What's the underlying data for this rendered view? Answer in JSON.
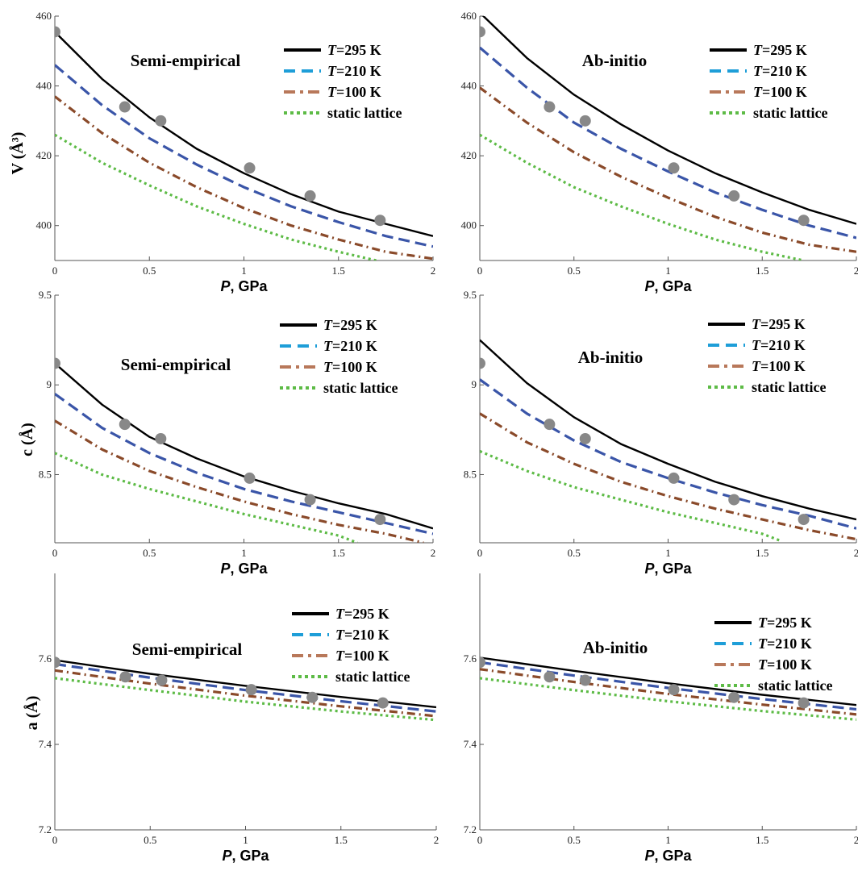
{
  "figure": {
    "x_axis_label_var": "P",
    "x_axis_label_unit": ", GPa"
  },
  "legend": [
    {
      "var": "T",
      "text": "=295 K",
      "color": "#000000",
      "style": "solid"
    },
    {
      "var": "T",
      "text": "=210 K",
      "color": "#3a55a8",
      "style": "dash"
    },
    {
      "var": "T",
      "text": "=100 K",
      "color": "#8a4a2a",
      "style": "dashdot"
    },
    {
      "var": "",
      "text": "static lattice",
      "color": "#5dbb46",
      "style": "dot"
    }
  ],
  "legend_swatch_colors": [
    "#000000",
    "#1e9ed8",
    "#b8785a",
    "#5dbb46"
  ],
  "marker_color": "#888888",
  "chart_data": [
    {
      "type": "line",
      "title": "Semi-empirical",
      "ylabel": "V (Å³)",
      "xlabel": "P, GPa",
      "xlim": [
        0,
        2
      ],
      "ylim": [
        390,
        460
      ],
      "xticks": [
        "0",
        "0.5",
        "1",
        "1.5",
        "2"
      ],
      "yticks": [
        "400",
        "420",
        "440",
        "460"
      ],
      "ytick_values": [
        400,
        420,
        440,
        460
      ],
      "grid": false,
      "legend_position": "top-right",
      "series": [
        {
          "name": "T=295 K",
          "x": [
            0,
            0.25,
            0.5,
            0.75,
            1.0,
            1.25,
            1.5,
            1.75,
            2.0
          ],
          "y": [
            455.5,
            442,
            431,
            422,
            415,
            409,
            404,
            400.5,
            397
          ]
        },
        {
          "name": "T=210 K",
          "x": [
            0,
            0.25,
            0.5,
            0.75,
            1.0,
            1.25,
            1.5,
            1.75,
            2.0
          ],
          "y": [
            446,
            434.5,
            425,
            417.5,
            411,
            405.5,
            401,
            397,
            394
          ]
        },
        {
          "name": "T=100 K",
          "x": [
            0,
            0.25,
            0.5,
            0.75,
            1.0,
            1.25,
            1.5,
            1.75,
            2.0
          ],
          "y": [
            437,
            426.5,
            418,
            411,
            405,
            400,
            396,
            392.5,
            390.5
          ]
        },
        {
          "name": "static lattice",
          "x": [
            0,
            0.25,
            0.5,
            0.75,
            1.0,
            1.25,
            1.5,
            1.7
          ],
          "y": [
            426,
            418,
            411.5,
            405.5,
            400.5,
            396,
            392.5,
            390
          ]
        }
      ],
      "points": {
        "x": [
          0,
          0.37,
          0.56,
          1.03,
          1.35,
          1.72
        ],
        "y": [
          455.5,
          434,
          430,
          416.5,
          408.5,
          401.5
        ]
      }
    },
    {
      "type": "line",
      "title": "Ab-initio",
      "ylabel": "",
      "xlabel": "P, GPa",
      "xlim": [
        0,
        2
      ],
      "ylim": [
        390,
        460
      ],
      "xticks": [
        "0",
        "0.5",
        "1",
        "1.5",
        "2"
      ],
      "yticks": [
        "400",
        "420",
        "440",
        "460"
      ],
      "ytick_values": [
        400,
        420,
        440,
        460
      ],
      "grid": false,
      "legend_position": "top-right",
      "series": [
        {
          "name": "T=295 K",
          "x": [
            0,
            0.25,
            0.5,
            0.75,
            1.0,
            1.25,
            1.5,
            1.75,
            2.0
          ],
          "y": [
            461,
            448,
            437.5,
            429,
            421.5,
            415,
            409.5,
            404.5,
            400.5
          ]
        },
        {
          "name": "T=210 K",
          "x": [
            0,
            0.25,
            0.5,
            0.75,
            1.0,
            1.25,
            1.5,
            1.75,
            2.0
          ],
          "y": [
            451,
            439.5,
            429.5,
            422,
            415.5,
            409.5,
            404.5,
            400,
            396.5
          ]
        },
        {
          "name": "T=100 K",
          "x": [
            0,
            0.25,
            0.5,
            0.75,
            1.0,
            1.25,
            1.5,
            1.75,
            2.0
          ],
          "y": [
            439.5,
            429.5,
            421,
            414,
            408,
            402.5,
            398,
            394.5,
            392.5
          ]
        },
        {
          "name": "static lattice",
          "x": [
            0,
            0.25,
            0.5,
            0.75,
            1.0,
            1.25,
            1.5,
            1.72
          ],
          "y": [
            426,
            418,
            411,
            405.5,
            400.5,
            396,
            392.5,
            390
          ]
        }
      ],
      "points": {
        "x": [
          0,
          0.37,
          0.56,
          1.03,
          1.35,
          1.72
        ],
        "y": [
          455.5,
          434,
          430,
          416.5,
          408.5,
          401.5
        ]
      }
    },
    {
      "type": "line",
      "title": "Semi-empirical",
      "ylabel": "c (Å)",
      "xlabel": "P, GPa",
      "xlim": [
        0,
        2
      ],
      "ylim": [
        8.12,
        9.5
      ],
      "xticks": [
        "0",
        "0.5",
        "1",
        "1.5",
        "2"
      ],
      "yticks": [
        "8.5",
        "9",
        "9.5"
      ],
      "ytick_values": [
        8.5,
        9.0,
        9.5
      ],
      "grid": false,
      "legend_position": "top-right",
      "series": [
        {
          "name": "T=295 K",
          "x": [
            0,
            0.25,
            0.5,
            0.75,
            1.0,
            1.25,
            1.5,
            1.75,
            2.0
          ],
          "y": [
            9.12,
            8.89,
            8.71,
            8.59,
            8.49,
            8.41,
            8.34,
            8.28,
            8.2
          ]
        },
        {
          "name": "T=210 K",
          "x": [
            0,
            0.25,
            0.5,
            0.75,
            1.0,
            1.25,
            1.5,
            1.75,
            2.0
          ],
          "y": [
            8.95,
            8.76,
            8.62,
            8.51,
            8.42,
            8.35,
            8.29,
            8.23,
            8.17
          ]
        },
        {
          "name": "T=100 K",
          "x": [
            0,
            0.25,
            0.5,
            0.75,
            1.0,
            1.25,
            1.5,
            1.75,
            1.95
          ],
          "y": [
            8.8,
            8.64,
            8.52,
            8.43,
            8.35,
            8.28,
            8.22,
            8.17,
            8.12
          ]
        },
        {
          "name": "static lattice",
          "x": [
            0,
            0.25,
            0.5,
            0.75,
            1.0,
            1.25,
            1.5,
            1.6
          ],
          "y": [
            8.62,
            8.5,
            8.42,
            8.35,
            8.28,
            8.22,
            8.16,
            8.12
          ]
        }
      ],
      "points": {
        "x": [
          0,
          0.37,
          0.56,
          1.03,
          1.35,
          1.72
        ],
        "y": [
          9.12,
          8.78,
          8.7,
          8.48,
          8.36,
          8.25
        ]
      }
    },
    {
      "type": "line",
      "title": "Ab-initio",
      "ylabel": "",
      "xlabel": "P, GPa",
      "xlim": [
        0,
        2
      ],
      "ylim": [
        8.12,
        9.5
      ],
      "xticks": [
        "0",
        "0.5",
        "1",
        "1.5",
        "2"
      ],
      "yticks": [
        "8.5",
        "9",
        "9.5"
      ],
      "ytick_values": [
        8.5,
        9.0,
        9.5
      ],
      "grid": false,
      "legend_position": "top-right",
      "series": [
        {
          "name": "T=295 K",
          "x": [
            0,
            0.25,
            0.5,
            0.75,
            1.0,
            1.25,
            1.5,
            1.75,
            2.0
          ],
          "y": [
            9.25,
            9.01,
            8.82,
            8.67,
            8.56,
            8.46,
            8.38,
            8.31,
            8.25
          ]
        },
        {
          "name": "T=210 K",
          "x": [
            0,
            0.25,
            0.5,
            0.75,
            1.0,
            1.25,
            1.5,
            1.75,
            2.0
          ],
          "y": [
            9.03,
            8.84,
            8.69,
            8.57,
            8.48,
            8.4,
            8.33,
            8.27,
            8.2
          ]
        },
        {
          "name": "T=100 K",
          "x": [
            0,
            0.25,
            0.5,
            0.75,
            1.0,
            1.25,
            1.5,
            1.75,
            2.0
          ],
          "y": [
            8.84,
            8.68,
            8.56,
            8.46,
            8.38,
            8.31,
            8.25,
            8.19,
            8.14
          ]
        },
        {
          "name": "static lattice",
          "x": [
            0,
            0.25,
            0.5,
            0.75,
            1.0,
            1.25,
            1.5,
            1.6
          ],
          "y": [
            8.63,
            8.52,
            8.43,
            8.36,
            8.29,
            8.23,
            8.17,
            8.13
          ]
        }
      ],
      "points": {
        "x": [
          0,
          0.37,
          0.56,
          1.03,
          1.35,
          1.72
        ],
        "y": [
          9.12,
          8.78,
          8.7,
          8.48,
          8.36,
          8.25
        ]
      }
    },
    {
      "type": "line",
      "title": "Semi-empirical",
      "ylabel": "a (Å)",
      "xlabel": "P, GPa",
      "xlim": [
        0,
        2
      ],
      "ylim": [
        7.2,
        7.8
      ],
      "xticks": [
        "0",
        "0.5",
        "1",
        "1.5",
        "2"
      ],
      "yticks": [
        "7.2",
        "7.4",
        "7.6"
      ],
      "ytick_values": [
        7.2,
        7.4,
        7.6
      ],
      "grid": false,
      "legend_position": "top-right",
      "series": [
        {
          "name": "T=295 K",
          "x": [
            0,
            0.5,
            1.0,
            1.5,
            2.0
          ],
          "y": [
            7.597,
            7.565,
            7.537,
            7.511,
            7.487
          ]
        },
        {
          "name": "T=210 K",
          "x": [
            0,
            0.5,
            1.0,
            1.5,
            2.0
          ],
          "y": [
            7.588,
            7.556,
            7.527,
            7.501,
            7.477
          ]
        },
        {
          "name": "T=100 K",
          "x": [
            0,
            0.5,
            1.0,
            1.5,
            2.0
          ],
          "y": [
            7.573,
            7.542,
            7.514,
            7.489,
            7.466
          ]
        },
        {
          "name": "static lattice",
          "x": [
            0,
            0.5,
            1.0,
            1.5,
            2.0
          ],
          "y": [
            7.555,
            7.527,
            7.5,
            7.477,
            7.457
          ]
        }
      ],
      "points": {
        "x": [
          0,
          0.37,
          0.56,
          1.03,
          1.35,
          1.72
        ],
        "y": [
          7.592,
          7.558,
          7.55,
          7.528,
          7.51,
          7.497
        ]
      }
    },
    {
      "type": "line",
      "title": "Ab-initio",
      "ylabel": "",
      "xlabel": "P, GPa",
      "xlim": [
        0,
        2
      ],
      "ylim": [
        7.2,
        7.8
      ],
      "xticks": [
        "0",
        "0.5",
        "1",
        "1.5",
        "2"
      ],
      "yticks": [
        "7.2",
        "7.4",
        "7.6"
      ],
      "ytick_values": [
        7.2,
        7.4,
        7.6
      ],
      "grid": false,
      "legend_position": "top-right",
      "series": [
        {
          "name": "T=295 K",
          "x": [
            0,
            0.5,
            1.0,
            1.5,
            2.0
          ],
          "y": [
            7.603,
            7.572,
            7.543,
            7.516,
            7.492
          ]
        },
        {
          "name": "T=210 K",
          "x": [
            0,
            0.5,
            1.0,
            1.5,
            2.0
          ],
          "y": [
            7.592,
            7.561,
            7.532,
            7.506,
            7.482
          ]
        },
        {
          "name": "T=100 K",
          "x": [
            0,
            0.5,
            1.0,
            1.5,
            2.0
          ],
          "y": [
            7.576,
            7.546,
            7.518,
            7.493,
            7.47
          ]
        },
        {
          "name": "static lattice",
          "x": [
            0,
            0.5,
            1.0,
            1.5,
            2.0
          ],
          "y": [
            7.555,
            7.527,
            7.501,
            7.478,
            7.458
          ]
        }
      ],
      "points": {
        "x": [
          0,
          0.37,
          0.56,
          1.03,
          1.35,
          1.72
        ],
        "y": [
          7.592,
          7.558,
          7.55,
          7.528,
          7.51,
          7.497
        ]
      }
    }
  ]
}
